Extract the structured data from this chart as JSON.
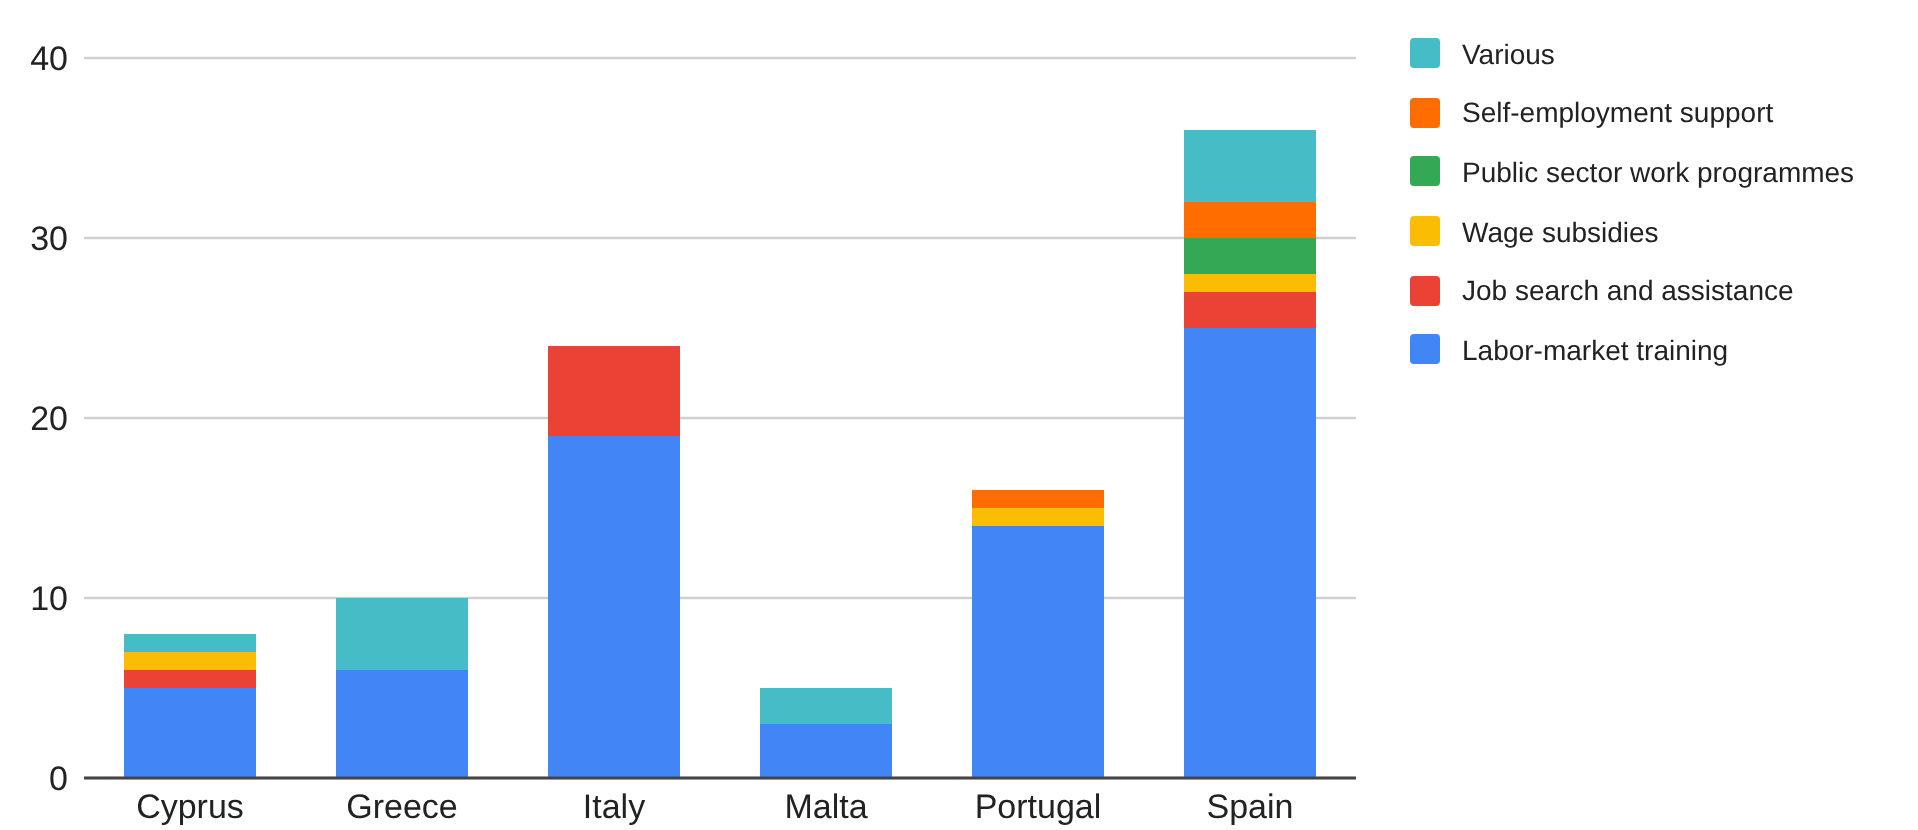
{
  "chart_data": {
    "type": "bar",
    "stacked": true,
    "categories": [
      "Cyprus",
      "Greece",
      "Italy",
      "Malta",
      "Portugal",
      "Spain"
    ],
    "series": [
      {
        "name": "Labor-market training",
        "color": "#4285f4",
        "values": [
          5,
          6,
          19,
          3,
          14,
          25
        ]
      },
      {
        "name": "Job search and assistance",
        "color": "#ea4335",
        "values": [
          1,
          null,
          5,
          null,
          null,
          2
        ]
      },
      {
        "name": "Wage subsidies",
        "color": "#fbbc04",
        "values": [
          1,
          null,
          null,
          null,
          1,
          1
        ]
      },
      {
        "name": "Public sector work programmes",
        "color": "#34a853",
        "values": [
          null,
          null,
          null,
          null,
          null,
          2
        ]
      },
      {
        "name": "Self-employment support",
        "color": "#ff6d01",
        "values": [
          null,
          null,
          null,
          null,
          1,
          2
        ]
      },
      {
        "name": "Various",
        "color": "#46bdc6",
        "values": [
          1,
          4,
          null,
          2,
          null,
          4
        ]
      }
    ],
    "ylim": [
      0,
      40
    ],
    "yticks": [
      0,
      10,
      20,
      30,
      40
    ],
    "grid": "y",
    "legend": "top right"
  }
}
